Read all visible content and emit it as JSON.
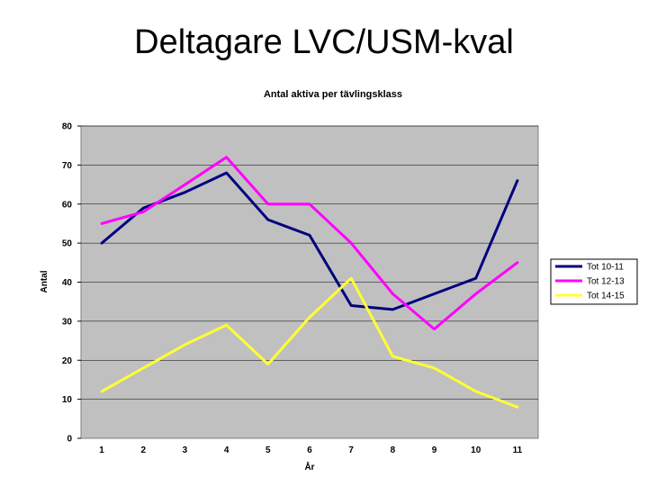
{
  "slide": {
    "title": "Deltagare LVC/USM-kval"
  },
  "chart_data": {
    "type": "line",
    "title": "Antal aktiva per tävlingsklass",
    "xlabel": "År",
    "ylabel": "Antal",
    "x": [
      1,
      2,
      3,
      4,
      5,
      6,
      7,
      8,
      9,
      10,
      11
    ],
    "ylim": [
      0,
      80
    ],
    "yticks": [
      0,
      10,
      20,
      30,
      40,
      50,
      60,
      70,
      80
    ],
    "grid": true,
    "legend_position": "right",
    "series": [
      {
        "name": "Tot 10-11",
        "color": "#000080",
        "values": [
          50,
          59,
          63,
          68,
          56,
          52,
          34,
          33,
          37,
          41,
          66
        ]
      },
      {
        "name": "Tot 12-13",
        "color": "#ff00ff",
        "values": [
          55,
          58,
          65,
          72,
          60,
          60,
          50,
          37,
          28,
          37,
          45
        ]
      },
      {
        "name": "Tot 14-15",
        "color": "#ffff33",
        "values": [
          12,
          18,
          24,
          29,
          19,
          31,
          41,
          21,
          18,
          12,
          8
        ]
      }
    ]
  }
}
